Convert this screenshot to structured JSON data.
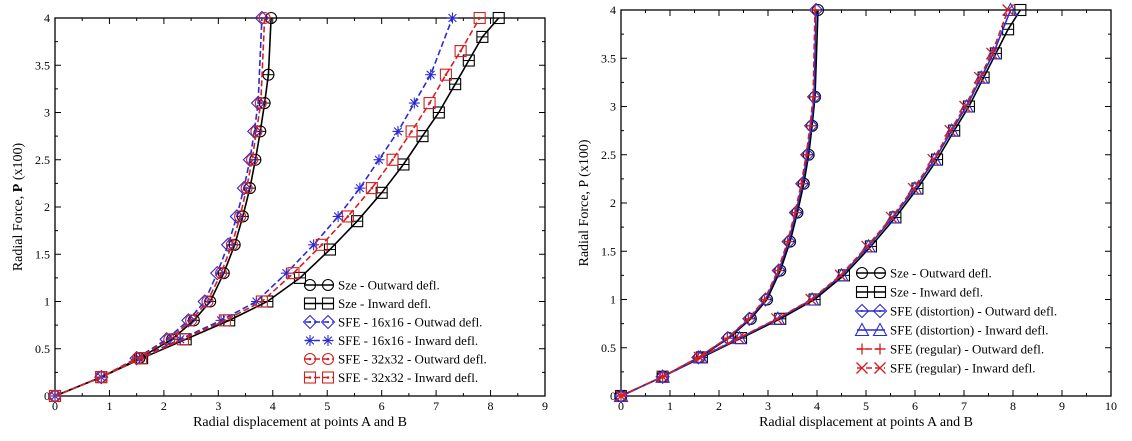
{
  "charts": [
    {
      "type": "line",
      "xlabel": "Radial displacement at points A and B",
      "ylabel_prefix": "Radial Force, ",
      "ylabel_bold": "P",
      "ylabel_suffix": " (x100)",
      "xlim": [
        0,
        9
      ],
      "ylim": [
        0,
        4
      ],
      "xticks": [
        0,
        1,
        2,
        3,
        4,
        5,
        6,
        7,
        8,
        9
      ],
      "yticks": [
        0.5,
        1,
        1.5,
        2,
        2.5,
        3,
        3.5,
        4
      ],
      "legend_position": "bottom-right",
      "series": [
        {
          "name": "Sze - Outward defl.",
          "color": "#000000",
          "marker": "circle",
          "dash": "none",
          "x": [
            0,
            0.85,
            1.55,
            2.15,
            2.55,
            2.85,
            3.1,
            3.3,
            3.45,
            3.58,
            3.68,
            3.77,
            3.85,
            3.92,
            3.97
          ],
          "y": [
            0,
            0.2,
            0.4,
            0.6,
            0.8,
            1.0,
            1.3,
            1.6,
            1.9,
            2.2,
            2.5,
            2.8,
            3.1,
            3.4,
            4.0
          ]
        },
        {
          "name": "Sze - Inward defl.",
          "color": "#000000",
          "marker": "square",
          "dash": "none",
          "x": [
            0,
            0.85,
            1.6,
            2.4,
            3.2,
            3.9,
            4.5,
            5.05,
            5.55,
            6.0,
            6.4,
            6.75,
            7.05,
            7.35,
            7.6,
            7.85,
            8.15
          ],
          "y": [
            0,
            0.2,
            0.4,
            0.6,
            0.8,
            1.0,
            1.25,
            1.55,
            1.85,
            2.15,
            2.45,
            2.75,
            3.0,
            3.3,
            3.55,
            3.8,
            4.0
          ]
        },
        {
          "name": "SFE - 16x16 - Outwad defl.",
          "color": "#2a2ad6",
          "marker": "diamond",
          "dash": "6,3",
          "x": [
            0,
            0.85,
            1.5,
            2.05,
            2.45,
            2.75,
            2.98,
            3.18,
            3.34,
            3.47,
            3.58,
            3.66,
            3.73,
            3.8
          ],
          "y": [
            0,
            0.2,
            0.4,
            0.6,
            0.8,
            1.0,
            1.3,
            1.6,
            1.9,
            2.2,
            2.5,
            2.8,
            3.1,
            4.0
          ]
        },
        {
          "name": "SFE - 16x16 - Inward defl.",
          "color": "#2a2ad6",
          "marker": "asterisk",
          "dash": "6,3",
          "x": [
            0,
            0.85,
            1.55,
            2.3,
            3.05,
            3.7,
            4.25,
            4.75,
            5.2,
            5.6,
            5.95,
            6.3,
            6.6,
            6.9,
            7.3
          ],
          "y": [
            0,
            0.2,
            0.4,
            0.6,
            0.8,
            1.0,
            1.3,
            1.6,
            1.9,
            2.2,
            2.5,
            2.8,
            3.1,
            3.4,
            4.0
          ]
        },
        {
          "name": "SFE - 32x32 - Outward defl.",
          "color": "#d42020",
          "marker": "circle-dot",
          "dash": "6,3",
          "x": [
            0,
            0.85,
            1.52,
            2.1,
            2.5,
            2.8,
            3.05,
            3.25,
            3.4,
            3.52,
            3.62,
            3.7,
            3.78,
            3.85
          ],
          "y": [
            0,
            0.2,
            0.4,
            0.6,
            0.8,
            1.0,
            1.3,
            1.6,
            1.9,
            2.2,
            2.5,
            2.8,
            3.1,
            4.0
          ]
        },
        {
          "name": "SFE - 32x32 - Inward defl.",
          "color": "#d42020",
          "marker": "square-dot",
          "dash": "6,3",
          "x": [
            0,
            0.85,
            1.58,
            2.35,
            3.12,
            3.8,
            4.38,
            4.9,
            5.38,
            5.82,
            6.2,
            6.55,
            6.88,
            7.18,
            7.45,
            7.8
          ],
          "y": [
            0,
            0.2,
            0.4,
            0.6,
            0.8,
            1.0,
            1.3,
            1.6,
            1.9,
            2.2,
            2.5,
            2.8,
            3.1,
            3.4,
            3.65,
            4.0
          ]
        }
      ]
    },
    {
      "type": "line",
      "xlabel": "Radial displacement at points A and B",
      "ylabel_prefix": "Radial Force, P (x100)",
      "ylabel_bold": "",
      "ylabel_suffix": "",
      "xlim": [
        0,
        10
      ],
      "ylim": [
        0,
        4
      ],
      "xticks": [
        0,
        1,
        2,
        3,
        4,
        5,
        6,
        7,
        8,
        9,
        10
      ],
      "yticks": [
        0.5,
        1,
        1.5,
        2,
        2.5,
        3,
        3.5,
        4
      ],
      "legend_position": "bottom-right",
      "series": [
        {
          "name": "Sze - Outward defl.",
          "color": "#000000",
          "marker": "circle",
          "dash": "none",
          "x": [
            0,
            0.85,
            1.6,
            2.2,
            2.65,
            2.98,
            3.25,
            3.45,
            3.6,
            3.73,
            3.83,
            3.9,
            3.96,
            4.02
          ],
          "y": [
            0,
            0.2,
            0.4,
            0.6,
            0.8,
            1.0,
            1.3,
            1.6,
            1.9,
            2.2,
            2.5,
            2.8,
            3.1,
            4.0
          ]
        },
        {
          "name": "Sze - Inward defl.",
          "color": "#000000",
          "marker": "square",
          "dash": "none",
          "x": [
            0,
            0.85,
            1.65,
            2.45,
            3.25,
            3.95,
            4.55,
            5.1,
            5.6,
            6.05,
            6.45,
            6.8,
            7.1,
            7.4,
            7.65,
            7.9,
            8.15
          ],
          "y": [
            0,
            0.2,
            0.4,
            0.6,
            0.8,
            1.0,
            1.25,
            1.55,
            1.85,
            2.15,
            2.45,
            2.75,
            3.0,
            3.3,
            3.55,
            3.8,
            4.0
          ]
        },
        {
          "name": "SFE (distortion) - Outward defl.",
          "color": "#2a2ad6",
          "marker": "diamond",
          "dash": "none",
          "x": [
            0,
            0.85,
            1.58,
            2.18,
            2.62,
            2.95,
            3.22,
            3.42,
            3.57,
            3.7,
            3.8,
            3.88,
            3.94,
            3.98
          ],
          "y": [
            0,
            0.2,
            0.4,
            0.6,
            0.8,
            1.0,
            1.3,
            1.6,
            1.9,
            2.2,
            2.5,
            2.8,
            3.1,
            4.0
          ]
        },
        {
          "name": "SFE (distortion) - Inward defl.",
          "color": "#2a2ad6",
          "marker": "triangle",
          "dash": "none",
          "x": [
            0,
            0.85,
            1.62,
            2.42,
            3.2,
            3.9,
            4.5,
            5.05,
            5.55,
            6.0,
            6.4,
            6.75,
            7.05,
            7.35,
            7.6,
            7.95
          ],
          "y": [
            0,
            0.2,
            0.4,
            0.6,
            0.8,
            1.0,
            1.25,
            1.55,
            1.85,
            2.15,
            2.45,
            2.75,
            3.0,
            3.3,
            3.55,
            4.0
          ]
        },
        {
          "name": "SFE (regular) - Outward defl.",
          "color": "#d42020",
          "marker": "plus",
          "dash": "6,3",
          "x": [
            0,
            0.85,
            1.57,
            2.17,
            2.6,
            2.93,
            3.2,
            3.4,
            3.55,
            3.68,
            3.78,
            3.86,
            3.92,
            3.96
          ],
          "y": [
            0,
            0.2,
            0.4,
            0.6,
            0.8,
            1.0,
            1.3,
            1.6,
            1.9,
            2.2,
            2.5,
            2.8,
            3.1,
            4.0
          ]
        },
        {
          "name": "SFE (regular) - Inward defl.",
          "color": "#d42020",
          "marker": "cross",
          "dash": "6,3",
          "x": [
            0,
            0.85,
            1.6,
            2.4,
            3.18,
            3.88,
            4.48,
            5.02,
            5.52,
            5.97,
            6.37,
            6.72,
            7.02,
            7.32,
            7.57,
            7.9
          ],
          "y": [
            0,
            0.2,
            0.4,
            0.6,
            0.8,
            1.0,
            1.25,
            1.55,
            1.85,
            2.15,
            2.45,
            2.75,
            3.0,
            3.3,
            3.55,
            4.0
          ]
        }
      ]
    }
  ]
}
